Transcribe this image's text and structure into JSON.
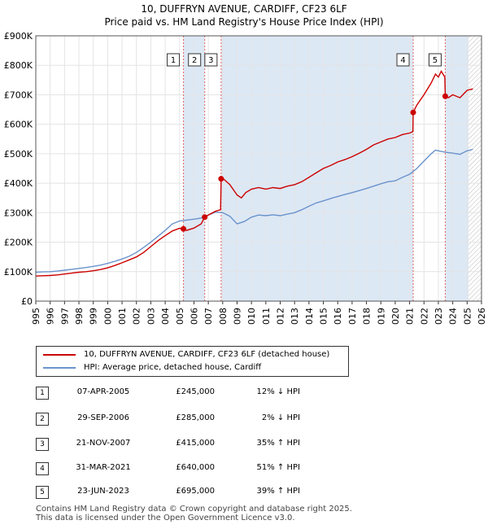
{
  "chart_data": {
    "type": "line",
    "title": "10, DUFFRYN AVENUE, CARDIFF, CF23 6LF",
    "subtitle": "Price paid vs. HM Land Registry's House Price Index (HPI)",
    "xlim": [
      1995,
      2026
    ],
    "ylim": [
      0,
      900000
    ],
    "y_ticks": [
      {
        "value": 0,
        "label": "£0"
      },
      {
        "value": 100000,
        "label": "£100K"
      },
      {
        "value": 200000,
        "label": "£200K"
      },
      {
        "value": 300000,
        "label": "£300K"
      },
      {
        "value": 400000,
        "label": "£400K"
      },
      {
        "value": 500000,
        "label": "£500K"
      },
      {
        "value": 600000,
        "label": "£600K"
      },
      {
        "value": 700000,
        "label": "£700K"
      },
      {
        "value": 800000,
        "label": "£800K"
      },
      {
        "value": 900000,
        "label": "£900K"
      }
    ],
    "x_ticks": [
      "1995",
      "1996",
      "1997",
      "1998",
      "1999",
      "2000",
      "2001",
      "2002",
      "2003",
      "2004",
      "2005",
      "2006",
      "2007",
      "2008",
      "2009",
      "2010",
      "2011",
      "2012",
      "2013",
      "2014",
      "2015",
      "2016",
      "2017",
      "2018",
      "2019",
      "2020",
      "2021",
      "2022",
      "2023",
      "2024",
      "2025",
      "2026"
    ],
    "highlight_start": 2025.1,
    "colors": {
      "property": "#cc0000",
      "hpi": "#6a93cc",
      "span": "#dde8f5",
      "marker_line": "#e06666"
    },
    "series": [
      {
        "name": "10, DUFFRYN AVENUE, CARDIFF, CF23 6LF (detached house)",
        "key": "property",
        "points": [
          [
            1995.0,
            85000
          ],
          [
            1995.5,
            86000
          ],
          [
            1996.0,
            87000
          ],
          [
            1996.5,
            89000
          ],
          [
            1997.0,
            92000
          ],
          [
            1997.5,
            95000
          ],
          [
            1998.0,
            98000
          ],
          [
            1998.5,
            100000
          ],
          [
            1999.0,
            103000
          ],
          [
            1999.5,
            107000
          ],
          [
            2000.0,
            113000
          ],
          [
            2000.5,
            121000
          ],
          [
            2001.0,
            130000
          ],
          [
            2001.5,
            140000
          ],
          [
            2002.0,
            150000
          ],
          [
            2002.5,
            165000
          ],
          [
            2003.0,
            185000
          ],
          [
            2003.5,
            205000
          ],
          [
            2004.0,
            222000
          ],
          [
            2004.5,
            238000
          ],
          [
            2005.0,
            247000
          ],
          [
            2005.27,
            245000
          ],
          [
            2005.5,
            240000
          ],
          [
            2006.0,
            248000
          ],
          [
            2006.5,
            262000
          ],
          [
            2006.75,
            285000
          ],
          [
            2007.0,
            292000
          ],
          [
            2007.5,
            305000
          ],
          [
            2007.85,
            310000
          ],
          [
            2007.89,
            415000
          ],
          [
            2008.0,
            417000
          ],
          [
            2008.5,
            395000
          ],
          [
            2009.0,
            360000
          ],
          [
            2009.3,
            350000
          ],
          [
            2009.6,
            368000
          ],
          [
            2010.0,
            380000
          ],
          [
            2010.5,
            385000
          ],
          [
            2011.0,
            380000
          ],
          [
            2011.5,
            385000
          ],
          [
            2012.0,
            382000
          ],
          [
            2012.5,
            390000
          ],
          [
            2013.0,
            395000
          ],
          [
            2013.5,
            405000
          ],
          [
            2014.0,
            420000
          ],
          [
            2014.5,
            435000
          ],
          [
            2015.0,
            450000
          ],
          [
            2015.5,
            460000
          ],
          [
            2016.0,
            472000
          ],
          [
            2016.5,
            480000
          ],
          [
            2017.0,
            490000
          ],
          [
            2017.5,
            502000
          ],
          [
            2018.0,
            515000
          ],
          [
            2018.5,
            530000
          ],
          [
            2019.0,
            540000
          ],
          [
            2019.5,
            550000
          ],
          [
            2020.0,
            555000
          ],
          [
            2020.5,
            565000
          ],
          [
            2021.0,
            570000
          ],
          [
            2021.23,
            575000
          ],
          [
            2021.25,
            640000
          ],
          [
            2021.5,
            665000
          ],
          [
            2022.0,
            700000
          ],
          [
            2022.5,
            740000
          ],
          [
            2022.8,
            770000
          ],
          [
            2023.0,
            760000
          ],
          [
            2023.2,
            780000
          ],
          [
            2023.45,
            760000
          ],
          [
            2023.48,
            695000
          ],
          [
            2023.7,
            690000
          ],
          [
            2024.0,
            700000
          ],
          [
            2024.5,
            690000
          ],
          [
            2024.8,
            705000
          ],
          [
            2025.0,
            715000
          ],
          [
            2025.4,
            720000
          ]
        ]
      },
      {
        "name": "HPI: Average price, detached house, Cardiff",
        "key": "hpi",
        "points": [
          [
            1995.0,
            98000
          ],
          [
            1995.5,
            99000
          ],
          [
            1996.0,
            100000
          ],
          [
            1996.5,
            102000
          ],
          [
            1997.0,
            105000
          ],
          [
            1997.5,
            108000
          ],
          [
            1998.0,
            111000
          ],
          [
            1998.5,
            114000
          ],
          [
            1999.0,
            118000
          ],
          [
            1999.5,
            122000
          ],
          [
            2000.0,
            128000
          ],
          [
            2000.5,
            135000
          ],
          [
            2001.0,
            143000
          ],
          [
            2001.5,
            152000
          ],
          [
            2002.0,
            165000
          ],
          [
            2002.5,
            182000
          ],
          [
            2003.0,
            200000
          ],
          [
            2003.5,
            220000
          ],
          [
            2004.0,
            240000
          ],
          [
            2004.5,
            262000
          ],
          [
            2005.0,
            272000
          ],
          [
            2005.5,
            275000
          ],
          [
            2006.0,
            278000
          ],
          [
            2006.5,
            282000
          ],
          [
            2007.0,
            292000
          ],
          [
            2007.5,
            302000
          ],
          [
            2008.0,
            300000
          ],
          [
            2008.5,
            288000
          ],
          [
            2009.0,
            262000
          ],
          [
            2009.5,
            270000
          ],
          [
            2010.0,
            285000
          ],
          [
            2010.5,
            292000
          ],
          [
            2011.0,
            290000
          ],
          [
            2011.5,
            293000
          ],
          [
            2012.0,
            290000
          ],
          [
            2012.5,
            295000
          ],
          [
            2013.0,
            300000
          ],
          [
            2013.5,
            310000
          ],
          [
            2014.0,
            322000
          ],
          [
            2014.5,
            333000
          ],
          [
            2015.0,
            340000
          ],
          [
            2015.5,
            348000
          ],
          [
            2016.0,
            355000
          ],
          [
            2016.5,
            362000
          ],
          [
            2017.0,
            368000
          ],
          [
            2017.5,
            375000
          ],
          [
            2018.0,
            382000
          ],
          [
            2018.5,
            390000
          ],
          [
            2019.0,
            398000
          ],
          [
            2019.5,
            405000
          ],
          [
            2020.0,
            408000
          ],
          [
            2020.5,
            420000
          ],
          [
            2021.0,
            430000
          ],
          [
            2021.5,
            450000
          ],
          [
            2022.0,
            475000
          ],
          [
            2022.5,
            500000
          ],
          [
            2022.8,
            512000
          ],
          [
            2023.0,
            510000
          ],
          [
            2023.5,
            505000
          ],
          [
            2024.0,
            502000
          ],
          [
            2024.5,
            498000
          ],
          [
            2025.0,
            510000
          ],
          [
            2025.4,
            515000
          ]
        ]
      }
    ],
    "sales": [
      {
        "label": "1",
        "x": 2005.27,
        "y": 245000
      },
      {
        "label": "2",
        "x": 2006.75,
        "y": 285000
      },
      {
        "label": "3",
        "x": 2007.89,
        "y": 415000
      },
      {
        "label": "4",
        "x": 2021.25,
        "y": 640000
      },
      {
        "label": "5",
        "x": 2023.48,
        "y": 695000
      }
    ]
  },
  "legend": {
    "property": "10, DUFFRYN AVENUE, CARDIFF, CF23 6LF (detached house)",
    "hpi": "HPI: Average price, detached house, Cardiff"
  },
  "transactions": [
    {
      "num": "1",
      "date": "07-APR-2005",
      "price": "£245,000",
      "hpi": "12% ↓ HPI"
    },
    {
      "num": "2",
      "date": "29-SEP-2006",
      "price": "£285,000",
      "hpi": "2% ↓ HPI"
    },
    {
      "num": "3",
      "date": "21-NOV-2007",
      "price": "£415,000",
      "hpi": "35% ↑ HPI"
    },
    {
      "num": "4",
      "date": "31-MAR-2021",
      "price": "£640,000",
      "hpi": "51% ↑ HPI"
    },
    {
      "num": "5",
      "date": "23-JUN-2023",
      "price": "£695,000",
      "hpi": "39% ↑ HPI"
    }
  ],
  "footer": {
    "line1": "Contains HM Land Registry data © Crown copyright and database right 2025.",
    "line2": "This data is licensed under the Open Government Licence v3.0."
  }
}
